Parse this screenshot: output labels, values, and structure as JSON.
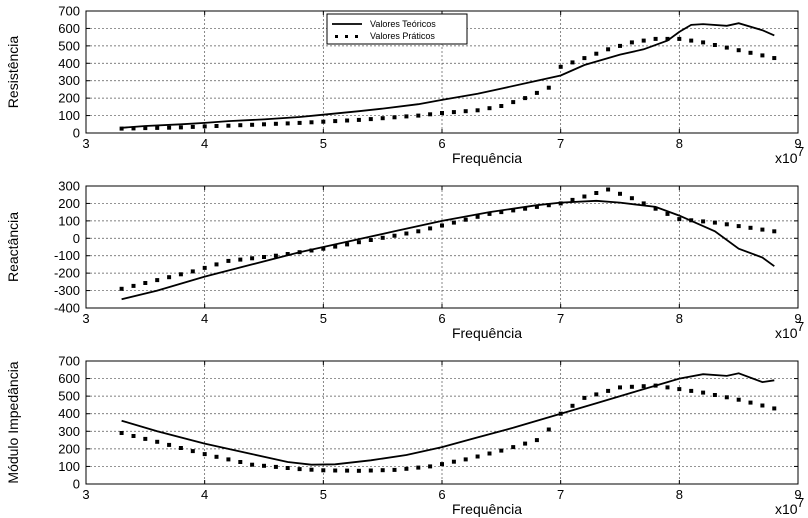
{
  "chart_data": [
    {
      "type": "line",
      "ylabel": "Resistência",
      "xlabel": "Frequência",
      "x_multiplier": "x10",
      "x_multiplier_exp": "7",
      "xlim": [
        3,
        9
      ],
      "ylim": [
        0,
        700
      ],
      "x_ticks": [
        "3",
        "4",
        "5",
        "6",
        "7",
        "8",
        "9"
      ],
      "y_ticks": [
        "0",
        "100",
        "200",
        "300",
        "400",
        "500",
        "600",
        "700"
      ],
      "grid": true,
      "legend": {
        "placement": "top-center",
        "entries": [
          "Valores Teóricos",
          "Valores Práticos"
        ]
      },
      "series": [
        {
          "name": "Valores Teóricos",
          "style": "solid",
          "x": [
            3.3,
            3.5,
            3.8,
            4.0,
            4.2,
            4.5,
            4.8,
            5.0,
            5.3,
            5.5,
            5.8,
            6.0,
            6.3,
            6.5,
            6.8,
            7.0,
            7.2,
            7.5,
            7.7,
            7.9,
            8.0,
            8.1,
            8.2,
            8.4,
            8.5,
            8.7,
            8.8
          ],
          "y": [
            30,
            40,
            50,
            58,
            68,
            78,
            92,
            105,
            125,
            140,
            165,
            190,
            225,
            255,
            300,
            330,
            390,
            450,
            480,
            530,
            580,
            620,
            625,
            615,
            630,
            590,
            560
          ]
        },
        {
          "name": "Valores Práticos",
          "style": "dotted",
          "x": [
            3.3,
            3.5,
            3.8,
            4.0,
            4.2,
            4.5,
            4.8,
            5.0,
            5.3,
            5.5,
            5.8,
            6.0,
            6.3,
            6.5,
            6.7,
            6.9,
            7.0,
            7.2,
            7.4,
            7.6,
            7.8,
            8.0,
            8.2,
            8.4,
            8.6,
            8.8
          ],
          "y": [
            25,
            28,
            32,
            38,
            42,
            50,
            58,
            65,
            75,
            85,
            100,
            115,
            130,
            155,
            200,
            260,
            380,
            430,
            480,
            520,
            540,
            540,
            520,
            490,
            460,
            430
          ]
        }
      ]
    },
    {
      "type": "line",
      "ylabel": "Reactância",
      "xlabel": "Frequência",
      "x_multiplier": "x10",
      "x_multiplier_exp": "7",
      "xlim": [
        3,
        9
      ],
      "ylim": [
        -400,
        300
      ],
      "x_ticks": [
        "3",
        "4",
        "5",
        "6",
        "7",
        "8",
        "9"
      ],
      "y_ticks": [
        "-400",
        "-300",
        "-200",
        "-100",
        "0",
        "100",
        "200",
        "300"
      ],
      "grid": true,
      "series": [
        {
          "name": "Valores Teóricos",
          "style": "solid",
          "x": [
            3.3,
            3.6,
            4.0,
            4.4,
            4.8,
            5.2,
            5.6,
            6.0,
            6.4,
            6.8,
            7.0,
            7.3,
            7.5,
            7.8,
            8.0,
            8.3,
            8.5,
            8.7,
            8.8
          ],
          "y": [
            -350,
            -300,
            -220,
            -150,
            -80,
            -20,
            40,
            100,
            150,
            190,
            205,
            215,
            205,
            180,
            130,
            40,
            -60,
            -110,
            -160
          ]
        },
        {
          "name": "Valores Práticos",
          "style": "dotted",
          "x": [
            3.3,
            3.6,
            3.9,
            4.2,
            4.6,
            5.0,
            5.4,
            5.8,
            6.1,
            6.4,
            6.7,
            7.0,
            7.2,
            7.4,
            7.6,
            7.8,
            8.0,
            8.3,
            8.6,
            8.8
          ],
          "y": [
            -290,
            -240,
            -190,
            -130,
            -100,
            -60,
            -10,
            40,
            90,
            140,
            170,
            200,
            240,
            280,
            230,
            170,
            110,
            90,
            60,
            40
          ]
        }
      ]
    },
    {
      "type": "line",
      "ylabel": "Módulo Impedância",
      "xlabel": "Frequência",
      "x_multiplier": "x10",
      "x_multiplier_exp": "7",
      "xlim": [
        3,
        9
      ],
      "ylim": [
        0,
        700
      ],
      "x_ticks": [
        "3",
        "4",
        "5",
        "6",
        "7",
        "8",
        "9"
      ],
      "y_ticks": [
        "0",
        "100",
        "200",
        "300",
        "400",
        "500",
        "600",
        "700"
      ],
      "grid": true,
      "series": [
        {
          "name": "Valores Teóricos",
          "style": "solid",
          "x": [
            3.3,
            3.6,
            4.0,
            4.4,
            4.7,
            4.9,
            5.1,
            5.4,
            5.7,
            6.0,
            6.3,
            6.6,
            7.0,
            7.3,
            7.6,
            7.9,
            8.0,
            8.2,
            8.4,
            8.5,
            8.7,
            8.8
          ],
          "y": [
            360,
            300,
            230,
            170,
            125,
            110,
            112,
            135,
            165,
            210,
            265,
            320,
            400,
            460,
            520,
            580,
            600,
            625,
            615,
            630,
            580,
            590
          ]
        },
        {
          "name": "Valores Práticos",
          "style": "dotted",
          "x": [
            3.3,
            3.6,
            4.0,
            4.4,
            4.8,
            5.0,
            5.3,
            5.6,
            5.9,
            6.2,
            6.5,
            6.8,
            6.9,
            7.0,
            7.2,
            7.5,
            7.8,
            8.0,
            8.2,
            8.5,
            8.8
          ],
          "y": [
            290,
            240,
            170,
            110,
            85,
            78,
            75,
            80,
            100,
            140,
            190,
            250,
            310,
            400,
            490,
            550,
            560,
            540,
            520,
            480,
            430
          ]
        }
      ]
    }
  ]
}
